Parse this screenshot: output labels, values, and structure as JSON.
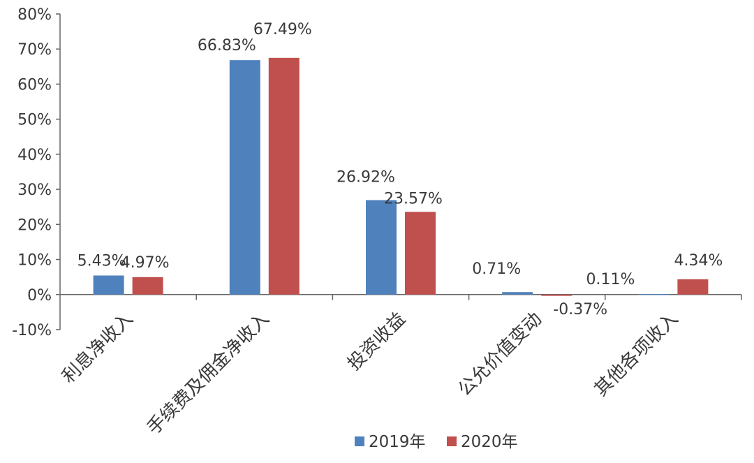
{
  "chart_data": {
    "type": "bar",
    "categories": [
      "利息净收入",
      "手续费及佣金净收入",
      "投资收益",
      "公允价值变动",
      "其他各项收入"
    ],
    "series": [
      {
        "name": "2019年",
        "color": "#4F81BD",
        "values": [
          5.43,
          66.83,
          26.92,
          0.71,
          0.11
        ],
        "labels": [
          "5.43%",
          "66.83%",
          "26.92%",
          "0.71%",
          "0.11%"
        ]
      },
      {
        "name": "2020年",
        "color": "#C0504D",
        "values": [
          4.97,
          67.49,
          23.57,
          -0.37,
          4.34
        ],
        "labels": [
          "4.97%",
          "67.49%",
          "23.57%",
          "-0.37%",
          "4.34%"
        ]
      }
    ],
    "y_ticks": [
      80,
      70,
      60,
      50,
      40,
      30,
      20,
      10,
      0,
      -10
    ],
    "y_tick_labels": [
      "80%",
      "70%",
      "60%",
      "50%",
      "40%",
      "30%",
      "20%",
      "10%",
      "0%",
      "-10%"
    ],
    "ylim": [
      -10,
      80
    ],
    "grid": false,
    "legend_position": "bottom-center",
    "title": "",
    "xlabel": "",
    "ylabel": ""
  }
}
